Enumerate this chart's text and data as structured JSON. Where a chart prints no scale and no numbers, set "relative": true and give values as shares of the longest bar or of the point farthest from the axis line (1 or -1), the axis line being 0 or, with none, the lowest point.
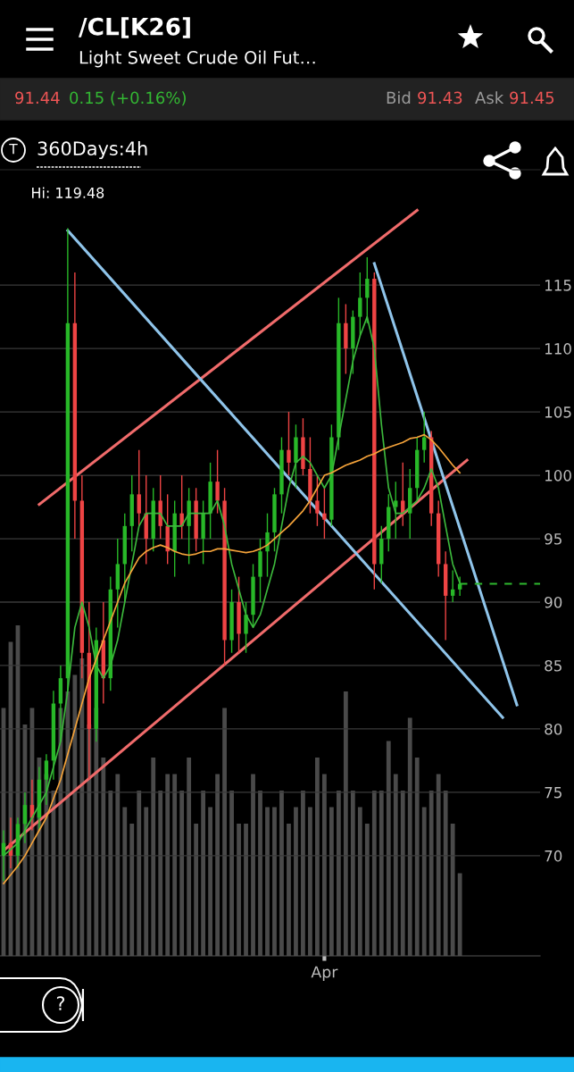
{
  "chart_data": [
    {
      "type": "candlestick",
      "title": "/CL[K26]",
      "subtitle": "Light Sweet Crude Oil Fut…",
      "annotations": [
        "91.44",
        "0.15 (+0.16%)",
        "Bid",
        "91.43",
        "Ask",
        "91.45",
        "T",
        "360Days:4h",
        {
          "text": "Hi: 119.48",
          "y": 119.48
        },
        "?"
      ],
      "categories": [
        null,
        null,
        null,
        null,
        null,
        null,
        null,
        null,
        null,
        null,
        null,
        null,
        null,
        null,
        null,
        null,
        null,
        null,
        null,
        null,
        null,
        null,
        null,
        null,
        null,
        null,
        null,
        null,
        null,
        null,
        null,
        null,
        null,
        null,
        null,
        null,
        null,
        null,
        null,
        null,
        null,
        null,
        null,
        null,
        null,
        "Apr",
        null,
        null,
        null,
        null,
        null,
        null,
        null,
        null,
        null,
        null,
        null,
        null,
        null,
        null,
        null,
        null,
        null,
        null,
        null,
        null,
        null,
        null,
        null,
        null,
        null,
        null,
        null,
        null,
        null,
        null
      ],
      "ohlc": [
        [
          70,
          72,
          68,
          71
        ],
        [
          71,
          73,
          69,
          70
        ],
        [
          70,
          73,
          69,
          72.5
        ],
        [
          72.5,
          75,
          71,
          74
        ],
        [
          74,
          76,
          72,
          73
        ],
        [
          73,
          77,
          72,
          76
        ],
        [
          76,
          78,
          74,
          77.5
        ],
        [
          77.5,
          83,
          76,
          82
        ],
        [
          82,
          85,
          79,
          84
        ],
        [
          84,
          119.48,
          83,
          112
        ],
        [
          112,
          116,
          95,
          98
        ],
        [
          98,
          100,
          84,
          86
        ],
        [
          86,
          90,
          76,
          80
        ],
        [
          80,
          88,
          79,
          87
        ],
        [
          87,
          90,
          82,
          84
        ],
        [
          84,
          92,
          83,
          91
        ],
        [
          91,
          95,
          88,
          93
        ],
        [
          93,
          97,
          90,
          96
        ],
        [
          96,
          100,
          94,
          98.5
        ],
        [
          98.5,
          102,
          96,
          97
        ],
        [
          97,
          100,
          93,
          95
        ],
        [
          95,
          99,
          94,
          98
        ],
        [
          98,
          100,
          95,
          96
        ],
        [
          96,
          98.5,
          93,
          94
        ],
        [
          94,
          98,
          92,
          97
        ],
        [
          97,
          100,
          95,
          96
        ],
        [
          96,
          99,
          93,
          98
        ],
        [
          98,
          99,
          94,
          95
        ],
        [
          95,
          98,
          93,
          97
        ],
        [
          97,
          101,
          95,
          99.5
        ],
        [
          99.5,
          102,
          97,
          98
        ],
        [
          98,
          99,
          85,
          87
        ],
        [
          87,
          91,
          86,
          90
        ],
        [
          90,
          92,
          86,
          87.5
        ],
        [
          87.5,
          90,
          86,
          89
        ],
        [
          89,
          93,
          88,
          92
        ],
        [
          92,
          95,
          90,
          94
        ],
        [
          94,
          97,
          92,
          95.5
        ],
        [
          95.5,
          99,
          94,
          98.5
        ],
        [
          98.5,
          103,
          97,
          102
        ],
        [
          102,
          105,
          100,
          101
        ],
        [
          101,
          104,
          99,
          103
        ],
        [
          103,
          104.5,
          100,
          100.5
        ],
        [
          100.5,
          103,
          97,
          98
        ],
        [
          98,
          100,
          96,
          97
        ],
        [
          97,
          99,
          95,
          96.5
        ],
        [
          96.5,
          104,
          96,
          103
        ],
        [
          103,
          114,
          102,
          112
        ],
        [
          112,
          113.5,
          108,
          110
        ],
        [
          110,
          113,
          108,
          112.5
        ],
        [
          112.5,
          116,
          111,
          114
        ],
        [
          114,
          117.2,
          112,
          115.5
        ],
        [
          115.5,
          116,
          91,
          93
        ],
        [
          93,
          96,
          91.5,
          95
        ],
        [
          95,
          98.5,
          94,
          97.5
        ],
        [
          97.5,
          99.5,
          95,
          98
        ],
        [
          98,
          101,
          96,
          97
        ],
        [
          97,
          100.5,
          95,
          99
        ],
        [
          99,
          103,
          98,
          102
        ],
        [
          102,
          105,
          101,
          103
        ],
        [
          103,
          103.5,
          96,
          97
        ],
        [
          97,
          98,
          92,
          93
        ],
        [
          93,
          94,
          87,
          90.5
        ],
        [
          90.5,
          92.5,
          90,
          91
        ],
        [
          91,
          92,
          90.5,
          91.44
        ],
        null,
        null,
        null,
        null,
        null,
        null,
        null,
        null,
        null,
        null,
        null
      ],
      "series": [
        {
          "type": "line",
          "color": "#3cb83c",
          "values": [
            70,
            70.5,
            71,
            72,
            73,
            74,
            75,
            77,
            79,
            83,
            88,
            90,
            88,
            85,
            84,
            85,
            87,
            90,
            93,
            96,
            97,
            97,
            97,
            96,
            96,
            96,
            97,
            97,
            97,
            97,
            98,
            96,
            93,
            91,
            89,
            88,
            89,
            91,
            93,
            96,
            99,
            101,
            101.5,
            101,
            100,
            99,
            100,
            103,
            106,
            109,
            111,
            112.5,
            110,
            104,
            99,
            97,
            97,
            97.5,
            98,
            99,
            100.5,
            99,
            96,
            93,
            91.5,
            null,
            null,
            null,
            null,
            null,
            null,
            null,
            null,
            null,
            null,
            null
          ]
        },
        {
          "type": "line",
          "color": "#f5a33a",
          "values": [
            67.8,
            68.5,
            69.2,
            70,
            71,
            72,
            73,
            74.5,
            76,
            78,
            80,
            82,
            84,
            85.5,
            87,
            88.5,
            90,
            91.5,
            92.5,
            93.5,
            94,
            94.3,
            94.5,
            94.3,
            94,
            93.8,
            93.7,
            93.8,
            94,
            94,
            94.2,
            94.2,
            94.1,
            94,
            93.9,
            94,
            94.2,
            94.5,
            95,
            95.5,
            96,
            96.6,
            97.2,
            98,
            99,
            100,
            100.2,
            100.5,
            100.8,
            101,
            101.2,
            101.5,
            101.7,
            102,
            102.2,
            102.4,
            102.6,
            102.9,
            103,
            103.2,
            102.8,
            102.2,
            101.5,
            100.8,
            100.2,
            null,
            null,
            null,
            null,
            null,
            null,
            null,
            null,
            null,
            null,
            null
          ]
        },
        {
          "type": "line",
          "color": "#f06b6b",
          "values": [
            null,
            null,
            null,
            null,
            null,
            97.7,
            null,
            null,
            null,
            null,
            null,
            null,
            null,
            null,
            null,
            null,
            null,
            null,
            null,
            null,
            null,
            null,
            null,
            null,
            null,
            null,
            null,
            null,
            null,
            null,
            null,
            null,
            null,
            null,
            null,
            null,
            null,
            null,
            null,
            null,
            null,
            null,
            null,
            null,
            null,
            null,
            null,
            null,
            null,
            null,
            null,
            null,
            null,
            null,
            null,
            null,
            null,
            null,
            120.9,
            null,
            null,
            null,
            null,
            null,
            null,
            null,
            null,
            null,
            null,
            null,
            null,
            null,
            null,
            null,
            null,
            null
          ]
        },
        {
          "type": "line",
          "color": "#f06b6b",
          "values": [
            70.4,
            null,
            null,
            null,
            null,
            null,
            null,
            null,
            null,
            null,
            null,
            null,
            null,
            null,
            null,
            null,
            null,
            null,
            null,
            null,
            null,
            null,
            null,
            null,
            null,
            null,
            null,
            null,
            null,
            null,
            null,
            null,
            null,
            null,
            null,
            null,
            null,
            null,
            null,
            null,
            null,
            null,
            null,
            null,
            null,
            null,
            null,
            null,
            null,
            null,
            null,
            null,
            null,
            null,
            null,
            null,
            null,
            null,
            null,
            null,
            null,
            null,
            null,
            null,
            null,
            101.2,
            null,
            null,
            null,
            null,
            null,
            null,
            null,
            null,
            null,
            null
          ]
        },
        {
          "type": "line",
          "color": "#8fc4ea",
          "values": [
            null,
            null,
            null,
            null,
            null,
            null,
            null,
            null,
            null,
            119.3,
            null,
            null,
            null,
            null,
            null,
            null,
            null,
            null,
            null,
            null,
            null,
            null,
            null,
            null,
            null,
            null,
            null,
            null,
            null,
            null,
            null,
            null,
            null,
            null,
            null,
            null,
            null,
            null,
            null,
            null,
            null,
            null,
            null,
            null,
            null,
            null,
            null,
            null,
            null,
            null,
            null,
            null,
            null,
            null,
            null,
            null,
            null,
            null,
            null,
            null,
            null,
            null,
            null,
            null,
            null,
            null,
            null,
            null,
            null,
            null,
            80.9,
            null,
            null,
            null,
            null,
            null
          ]
        },
        {
          "type": "line",
          "color": "#8fc4ea",
          "values": [
            null,
            null,
            null,
            null,
            null,
            null,
            null,
            null,
            null,
            null,
            null,
            null,
            null,
            null,
            null,
            null,
            null,
            null,
            null,
            null,
            null,
            null,
            null,
            null,
            null,
            null,
            null,
            null,
            null,
            null,
            null,
            null,
            null,
            null,
            null,
            null,
            null,
            null,
            null,
            null,
            null,
            null,
            null,
            null,
            null,
            null,
            null,
            null,
            null,
            null,
            null,
            null,
            116.7,
            null,
            null,
            null,
            null,
            null,
            null,
            null,
            null,
            null,
            null,
            null,
            null,
            null,
            null,
            null,
            null,
            null,
            null,
            null,
            81.9,
            null,
            null,
            null
          ]
        }
      ],
      "ref_lines": [
        {
          "axis": "y",
          "value": 91.44,
          "color": "#2eb82e",
          "line_style": "dashed"
        }
      ],
      "ylim": [
        62.1,
        124.1
      ],
      "yticks": [
        70,
        75,
        80,
        85,
        90,
        95,
        100,
        105,
        110,
        115
      ],
      "grid": "y"
    },
    {
      "type": "bar",
      "relative": true,
      "color": "#4a4a4a",
      "categories": [
        null,
        null,
        null,
        null,
        null,
        null,
        null,
        null,
        null,
        null,
        null,
        null,
        null,
        null,
        null,
        null,
        null,
        null,
        null,
        null,
        null,
        null,
        null,
        null,
        null,
        null,
        null,
        null,
        null,
        null,
        null,
        null,
        null,
        null,
        null,
        null,
        null,
        null,
        null,
        null,
        null,
        null,
        null,
        null,
        null,
        null,
        null,
        null,
        null,
        null,
        null,
        null,
        null,
        null,
        null,
        null,
        null,
        null,
        null,
        null,
        null,
        null,
        null,
        null,
        null,
        null,
        null,
        null,
        null,
        null,
        null,
        null,
        null,
        null,
        null,
        null
      ],
      "values": [
        0.75,
        0.95,
        1.0,
        0.7,
        0.75,
        0.6,
        0.55,
        0.5,
        0.75,
        0.8,
        0.85,
        0.9,
        0.7,
        0.75,
        0.6,
        0.5,
        0.55,
        0.45,
        0.4,
        0.5,
        0.45,
        0.6,
        0.5,
        0.55,
        0.55,
        0.5,
        0.6,
        0.4,
        0.5,
        0.45,
        0.55,
        0.75,
        0.5,
        0.4,
        0.4,
        0.55,
        0.5,
        0.45,
        0.45,
        0.5,
        0.4,
        0.45,
        0.5,
        0.45,
        0.6,
        0.55,
        0.45,
        0.5,
        0.8,
        0.5,
        0.45,
        0.4,
        0.5,
        0.5,
        0.65,
        0.55,
        0.5,
        0.72,
        0.6,
        0.45,
        0.5,
        0.55,
        0.5,
        0.4,
        0.25,
        null,
        null,
        null,
        null,
        null,
        null,
        null,
        null,
        null,
        null,
        null
      ]
    }
  ]
}
